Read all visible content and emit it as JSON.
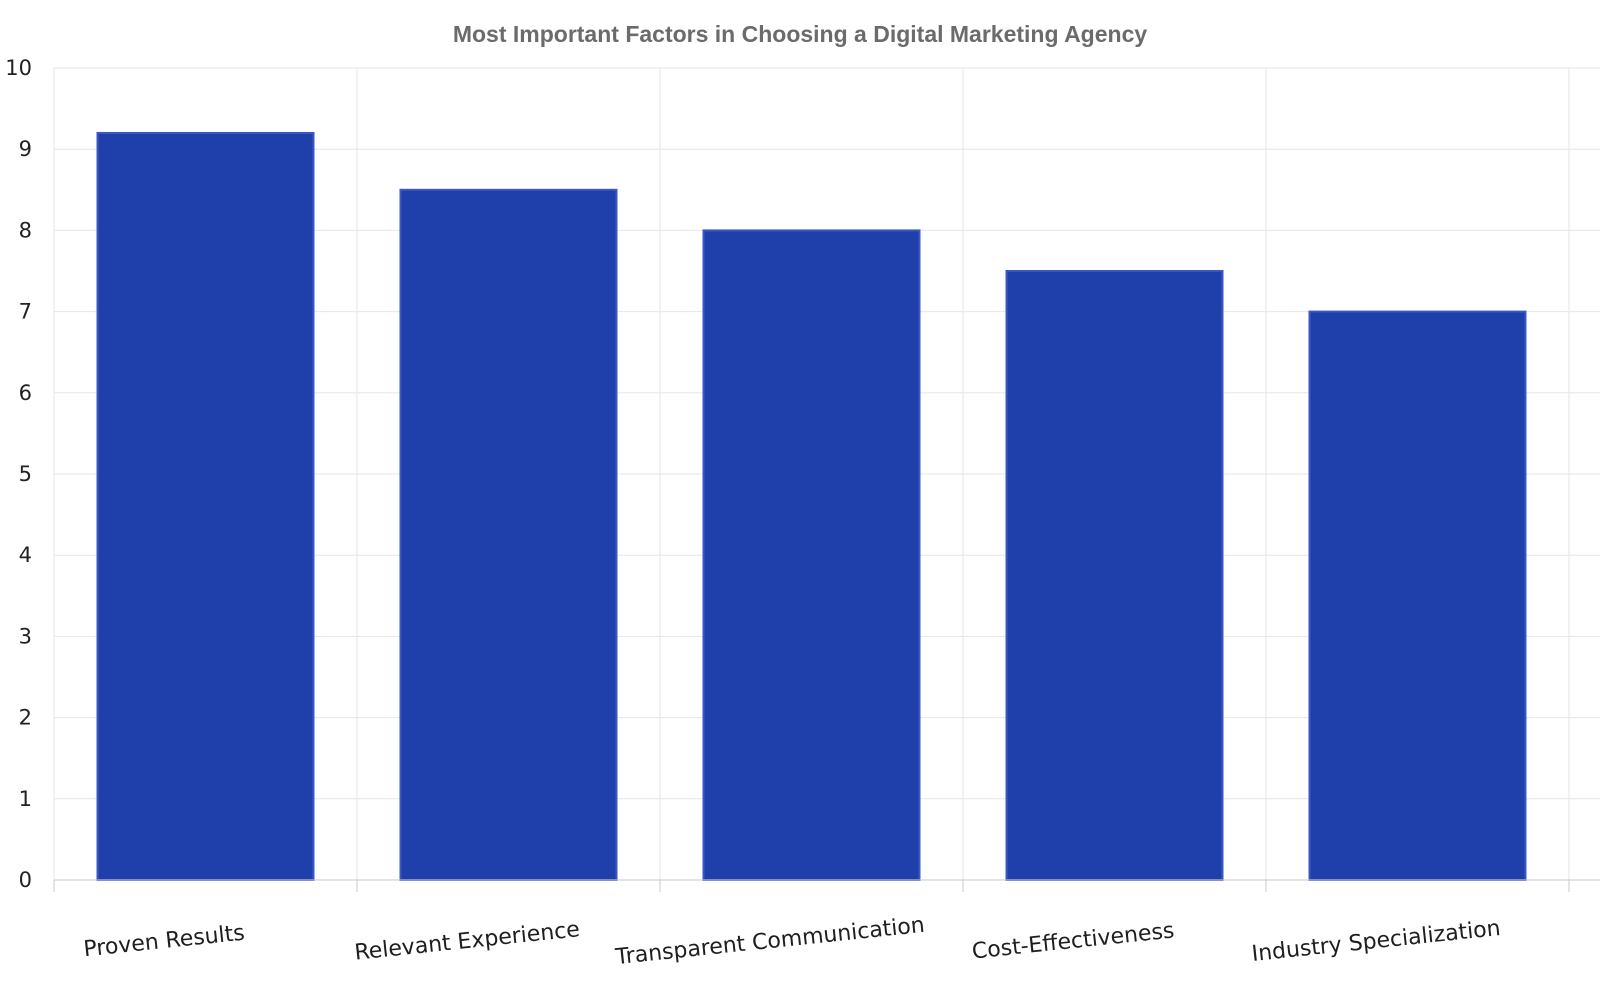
{
  "chart_data": {
    "type": "bar",
    "title": "Most Important Factors in Choosing a Digital Marketing Agency",
    "xlabel": "",
    "ylabel": "",
    "categories": [
      "Proven Results",
      "Relevant Experience",
      "Transparent Communication",
      "Cost-Effectiveness",
      "Industry Specialization"
    ],
    "values": [
      9.2,
      8.5,
      8.0,
      7.5,
      7.0
    ],
    "ylim": [
      0,
      10
    ],
    "yticks": [
      "0",
      "1",
      "2",
      "3",
      "4",
      "5",
      "6",
      "7",
      "8",
      "9",
      "10"
    ],
    "grid": true,
    "legend": "none",
    "colors": {
      "bar_fill": "#1f40ab",
      "bar_edge": "#3a58c4",
      "title": "#6b6b6b",
      "grid": "#e6e6e6"
    }
  }
}
